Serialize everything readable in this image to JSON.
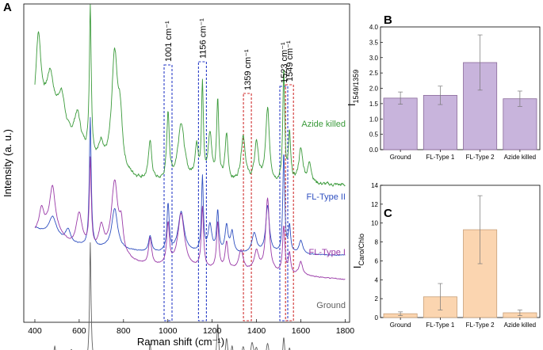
{
  "chart_data": [
    {
      "panel": "A",
      "type": "line",
      "xlabel": "Raman shift (cm⁻¹)",
      "ylabel": "Intensity (a. u.)",
      "xlim": [
        350,
        1820
      ],
      "xticks": [
        400,
        600,
        800,
        1000,
        1200,
        1400,
        1600,
        1800
      ],
      "series": [
        {
          "name": "Azide killed",
          "color": "#3a9a3a",
          "offset": 0.8,
          "noise": 0.18,
          "baseline": [
            [
              400,
              0.45
            ],
            [
              420,
              0.55
            ],
            [
              480,
              0.4
            ],
            [
              540,
              0.3
            ],
            [
              640,
              0.2
            ],
            [
              700,
              0.12
            ],
            [
              800,
              0.05
            ],
            [
              1000,
              0.0
            ],
            [
              1200,
              0.0
            ],
            [
              1400,
              0.0
            ],
            [
              1800,
              0.0
            ]
          ],
          "peaks": [
            [
              415,
              0.55,
              14
            ],
            [
              470,
              0.35,
              20
            ],
            [
              520,
              0.3,
              22
            ],
            [
              592,
              0.25,
              18
            ],
            [
              650,
              1.1,
              5
            ],
            [
              700,
              0.15,
              12
            ],
            [
              760,
              0.85,
              16
            ],
            [
              785,
              0.35,
              12
            ],
            [
              920,
              0.3,
              8
            ],
            [
              1001,
              0.5,
              7
            ],
            [
              1060,
              0.45,
              18
            ],
            [
              1130,
              0.25,
              10
            ],
            [
              1156,
              0.7,
              5
            ],
            [
              1190,
              0.35,
              10
            ],
            [
              1225,
              0.6,
              6
            ],
            [
              1265,
              0.35,
              8
            ],
            [
              1340,
              0.35,
              12
            ],
            [
              1400,
              0.3,
              10
            ],
            [
              1450,
              0.55,
              10
            ],
            [
              1523,
              0.85,
              5
            ],
            [
              1549,
              0.35,
              6
            ],
            [
              1600,
              0.25,
              12
            ],
            [
              1640,
              0.15,
              10
            ]
          ]
        },
        {
          "name": "FL-Type II",
          "color": "#3050c0",
          "offset": 0.28,
          "noise": 0.04,
          "baseline": [
            [
              400,
              0.2
            ],
            [
              460,
              0.15
            ],
            [
              560,
              0.08
            ],
            [
              700,
              0.05
            ],
            [
              900,
              0.02
            ],
            [
              1800,
              0.0
            ]
          ],
          "peaks": [
            [
              480,
              0.15,
              20
            ],
            [
              550,
              0.1,
              14
            ],
            [
              650,
              0.95,
              5
            ],
            [
              760,
              0.3,
              16
            ],
            [
              920,
              0.12,
              8
            ],
            [
              1001,
              0.35,
              6
            ],
            [
              1060,
              0.3,
              16
            ],
            [
              1156,
              0.55,
              5
            ],
            [
              1190,
              0.2,
              10
            ],
            [
              1225,
              0.3,
              6
            ],
            [
              1265,
              0.2,
              8
            ],
            [
              1290,
              0.15,
              8
            ],
            [
              1390,
              0.15,
              12
            ],
            [
              1450,
              0.35,
              10
            ],
            [
              1523,
              0.75,
              5
            ],
            [
              1549,
              0.2,
              6
            ],
            [
              1600,
              0.1,
              10
            ]
          ]
        },
        {
          "name": "FL-Type I",
          "color": "#9a3aa8",
          "offset": 0.1,
          "noise": 0.05,
          "baseline": [
            [
              400,
              0.35
            ],
            [
              470,
              0.4
            ],
            [
              560,
              0.25
            ],
            [
              700,
              0.18
            ],
            [
              900,
              0.1
            ],
            [
              1100,
              0.08
            ],
            [
              1400,
              0.05
            ],
            [
              1800,
              0.0
            ]
          ],
          "peaks": [
            [
              430,
              0.15,
              12
            ],
            [
              480,
              0.3,
              14
            ],
            [
              600,
              0.25,
              16
            ],
            [
              650,
              0.65,
              5
            ],
            [
              700,
              0.18,
              14
            ],
            [
              760,
              0.55,
              18
            ],
            [
              790,
              0.2,
              10
            ],
            [
              920,
              0.2,
              8
            ],
            [
              1001,
              0.3,
              7
            ],
            [
              1060,
              0.4,
              18
            ],
            [
              1156,
              0.45,
              6
            ],
            [
              1225,
              0.35,
              6
            ],
            [
              1265,
              0.2,
              8
            ],
            [
              1330,
              0.15,
              12
            ],
            [
              1400,
              0.15,
              12
            ],
            [
              1450,
              0.55,
              10
            ],
            [
              1523,
              0.35,
              6
            ],
            [
              1549,
              0.15,
              6
            ],
            [
              1600,
              0.1,
              10
            ]
          ]
        },
        {
          "name": "Ground",
          "color": "#606060",
          "offset": -0.55,
          "noise": 0.02,
          "baseline": [
            [
              400,
              0.05
            ],
            [
              600,
              0.02
            ],
            [
              900,
              0.02
            ],
            [
              1400,
              0.02
            ],
            [
              1800,
              0.0
            ]
          ],
          "peaks": [
            [
              490,
              0.12,
              5
            ],
            [
              550,
              0.08,
              5
            ],
            [
              565,
              0.1,
              4
            ],
            [
              650,
              0.9,
              4
            ],
            [
              700,
              0.05,
              6
            ],
            [
              760,
              0.08,
              10
            ],
            [
              920,
              0.15,
              5
            ],
            [
              1001,
              0.1,
              6
            ],
            [
              1060,
              0.08,
              12
            ],
            [
              1156,
              0.1,
              5
            ],
            [
              1225,
              0.3,
              5
            ],
            [
              1265,
              0.18,
              6
            ],
            [
              1290,
              0.12,
              6
            ],
            [
              1340,
              0.12,
              8
            ],
            [
              1380,
              0.14,
              8
            ],
            [
              1400,
              0.1,
              8
            ],
            [
              1450,
              0.15,
              8
            ],
            [
              1523,
              0.2,
              5
            ],
            [
              1549,
              0.12,
              6
            ],
            [
              1600,
              0.05,
              10
            ]
          ]
        }
      ],
      "annotations": [
        {
          "label": "1001 cm⁻¹",
          "x": 1001,
          "color": "#2a3ec8"
        },
        {
          "label": "1156 cm⁻¹",
          "x": 1156,
          "color": "#2a3ec8"
        },
        {
          "label": "1359 cm⁻¹",
          "x": 1359,
          "color": "#d03030"
        },
        {
          "label": "1523 cm⁻¹",
          "x": 1523,
          "color": "#2a3ec8"
        },
        {
          "label": "1549 cm⁻¹",
          "x": 1549,
          "color": "#d03030"
        }
      ],
      "legend_placement": "labels beside each trace on the right"
    },
    {
      "panel": "B",
      "type": "bar",
      "ylabel": "I",
      "ylabel_sub": "1549/1359",
      "categories": [
        "Ground",
        "FL-Type 1",
        "FL-Type 2",
        "Azide killed"
      ],
      "values": [
        1.68,
        1.77,
        2.84,
        1.66
      ],
      "errors": [
        0.2,
        0.3,
        0.9,
        0.25
      ],
      "ylim": [
        0.0,
        4.0
      ],
      "yticks": [
        "0.0",
        "0.5",
        "1.0",
        "1.5",
        "2.0",
        "2.5",
        "3.0",
        "3.5",
        "4.0"
      ],
      "bar_color": "#c8b4dc",
      "edge_color": "#8a6a9a"
    },
    {
      "panel": "C",
      "type": "bar",
      "ylabel": "I",
      "ylabel_sub": "Caro/Chlo",
      "categories": [
        "Ground",
        "FL-Type 1",
        "FL-Type 2",
        "Azide killed"
      ],
      "values": [
        0.4,
        2.2,
        9.3,
        0.5
      ],
      "errors": [
        0.2,
        1.4,
        3.6,
        0.3
      ],
      "ylim": [
        0,
        14
      ],
      "yticks": [
        "0",
        "2",
        "4",
        "6",
        "8",
        "10",
        "12",
        "14"
      ],
      "bar_color": "#fbd5b0",
      "edge_color": "#c8a07a"
    }
  ]
}
